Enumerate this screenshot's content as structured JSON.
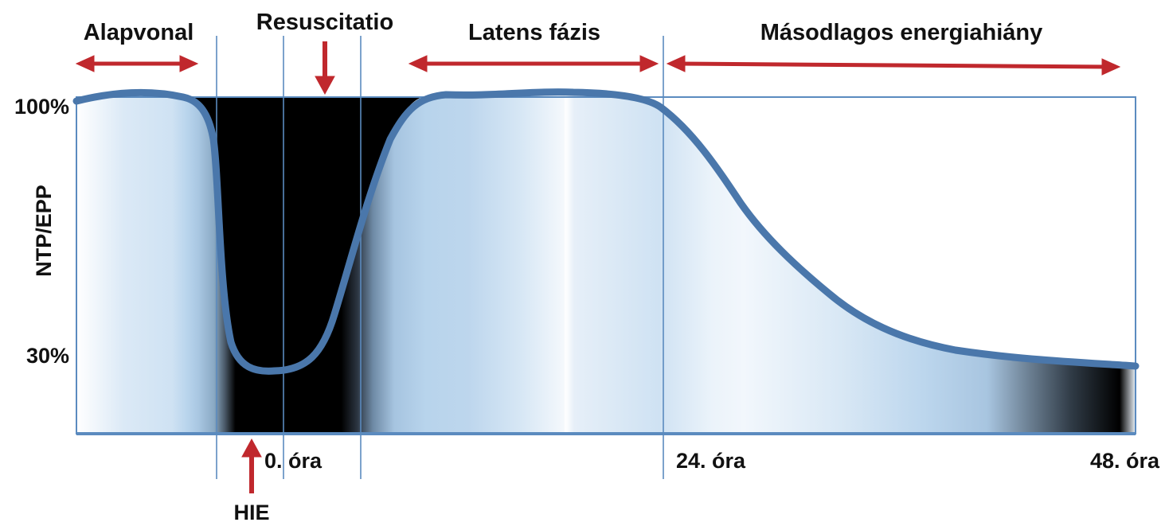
{
  "phases": {
    "baseline": "Alapvonal",
    "resuscitation": "Resuscitatio",
    "latent": "Latens fázis",
    "secondary": "Másodlagos energiahiány"
  },
  "y_axis": {
    "label": "NTP/EPP",
    "ticks": [
      "100%",
      "30%"
    ]
  },
  "time_labels": [
    "0. óra",
    "24. óra",
    "48. óra"
  ],
  "event_label": "HIE",
  "colors": {
    "curve": "#4a77ab",
    "frame": "#5b8bbf",
    "arrow": "#c0282d",
    "fill_light": "#b8d4ec",
    "injury": "#000000"
  }
}
